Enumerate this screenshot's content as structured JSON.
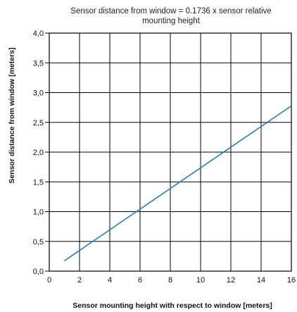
{
  "chart_data": {
    "type": "line",
    "title_lines": [
      "Sensor distance from window = 0.1736 x sensor relative",
      "mounting height"
    ],
    "xlabel": "Sensor mounting height with respect to window [meters]",
    "ylabel": "Sensor distance from window [meters]",
    "x_ticks": [
      "0",
      "2",
      "4",
      "6",
      "8",
      "10",
      "12",
      "14",
      "16"
    ],
    "y_ticks": [
      "0,0",
      "0,5",
      "1,0",
      "1,5",
      "2,0",
      "2,5",
      "3,0",
      "3,5",
      "4,0"
    ],
    "xlim": [
      0,
      16
    ],
    "ylim": [
      0,
      4
    ],
    "grid": true,
    "legend": "none",
    "series": [
      {
        "line_color": "#2f7bb5",
        "x": [
          1,
          16
        ],
        "y": [
          0.1736,
          2.7776
        ]
      }
    ]
  }
}
